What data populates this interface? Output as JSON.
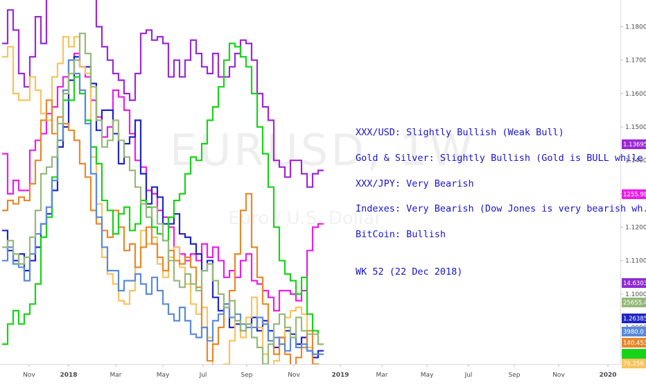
{
  "watermark": {
    "symbol": "EURUSD, 1W",
    "name": "Euro / U.S. Dollar"
  },
  "annotations": [
    "XXX/USD: Slightly Bullish (Weak Bull)",
    "Gold & Silver: Slightly Bullish (Gold is BULL while",
    "XXX/JPY: Very Bearish",
    "Indexes: Very Bearish (Dow Jones is very bearish wh.",
    "BitCoin: Bullish",
    "WK 52 (22 Dec 2018)"
  ],
  "price_badges": [
    {
      "label": "1.13695",
      "color": "#9c27d6"
    },
    {
      "label": "1255.984",
      "color": "#e91ee8"
    },
    {
      "label": "14.63037",
      "color": "#8f2bd0"
    },
    {
      "label": "25655.4",
      "color": "#95b87a"
    },
    {
      "label": "1.26385",
      "color": "#1e25c8"
    },
    {
      "label": "3980.0",
      "color": "#5a8ad8"
    },
    {
      "label": "140.453",
      "color": "#e8872a"
    },
    {
      "label": "",
      "color": "#17d317"
    },
    {
      "label": "78.256",
      "color": "#f7c35e"
    }
  ],
  "chart_data": {
    "type": "line",
    "title": "EURUSD, 1W",
    "x_ticks": [
      "Nov",
      "2018",
      "Mar",
      "May",
      "Jul",
      "Sep",
      "Nov",
      "2019",
      "Mar",
      "May",
      "Jul",
      "Sep",
      "Nov",
      "2020"
    ],
    "y_ticks": [
      "1.18000",
      "1.17000",
      "1.16000",
      "1.15000",
      "1.14000",
      "1.13000",
      "1.12000",
      "1.11000",
      "1.10000",
      "1.09000"
    ],
    "ylim": [
      1.079,
      1.188
    ],
    "weeks_plotted": 58,
    "series": [
      {
        "color": "#9c27d6",
        "values": [
          1.175,
          1.185,
          1.179,
          1.166,
          1.162,
          1.171,
          1.183,
          1.175,
          1.19,
          1.19,
          1.19,
          1.19,
          1.19,
          1.19,
          1.19,
          1.19,
          1.19,
          1.18,
          1.174,
          1.17,
          1.166,
          1.164,
          1.16,
          1.158,
          1.166,
          1.178,
          1.179,
          1.176,
          1.177,
          1.175,
          1.165,
          1.17,
          1.165,
          1.17,
          1.176,
          1.172,
          1.168,
          1.166,
          1.172,
          1.165,
          1.165,
          1.168,
          1.172,
          1.176,
          1.175,
          1.17,
          1.16,
          1.156,
          1.152,
          1.14,
          1.138,
          1.135,
          1.14,
          1.14,
          1.136,
          1.132,
          1.136,
          1.137
        ]
      },
      {
        "color": "#e91ee8",
        "values": [
          1.142,
          1.13,
          1.134,
          1.131,
          1.131,
          1.143,
          1.146,
          1.148,
          1.154,
          1.156,
          1.162,
          1.165,
          1.17,
          1.172,
          1.168,
          1.165,
          1.158,
          1.153,
          1.147,
          1.15,
          1.161,
          1.159,
          1.155,
          1.148,
          1.14,
          1.138,
          1.131,
          1.13,
          1.125,
          1.123,
          1.12,
          1.114,
          1.112,
          1.11,
          1.112,
          1.11,
          1.115,
          1.111,
          1.114,
          1.11,
          1.105,
          1.107,
          1.105,
          1.11,
          1.112,
          1.104,
          1.103,
          1.101,
          1.099,
          1.095,
          1.101,
          1.101,
          1.1,
          1.098,
          1.101,
          1.113,
          1.12,
          1.121
        ]
      },
      {
        "color": "#1e25c8",
        "values": [
          1.119,
          1.113,
          1.11,
          1.112,
          1.107,
          1.11,
          1.114,
          1.121,
          1.124,
          1.131,
          1.144,
          1.15,
          1.164,
          1.171,
          1.168,
          1.168,
          1.163,
          1.149,
          1.155,
          1.155,
          1.148,
          1.139,
          1.145,
          1.147,
          1.152,
          1.136,
          1.127,
          1.132,
          1.129,
          1.121,
          1.121,
          1.124,
          1.118,
          1.117,
          1.115,
          1.112,
          1.107,
          1.11,
          1.099,
          1.095,
          1.097,
          1.09,
          1.091,
          1.089,
          1.091,
          1.093,
          1.089,
          1.092,
          1.089,
          1.084,
          1.087,
          1.089,
          1.088,
          1.085,
          1.087,
          1.083,
          1.081,
          1.083
        ]
      },
      {
        "color": "#f7c35e",
        "values": [
          1.171,
          1.174,
          1.16,
          1.158,
          1.158,
          1.165,
          1.161,
          1.154,
          1.152,
          1.165,
          1.169,
          1.177,
          1.174,
          1.177,
          1.168,
          1.166,
          1.141,
          1.127,
          1.111,
          1.106,
          1.103,
          1.098,
          1.097,
          1.101,
          1.108,
          1.119,
          1.115,
          1.117,
          1.109,
          1.105,
          1.111,
          1.114,
          1.108,
          1.103,
          1.097,
          1.094,
          1.096,
          1.087,
          1.077,
          1.075,
          1.079,
          1.086,
          1.092,
          1.087,
          1.093,
          1.099,
          1.09,
          1.082,
          1.076,
          1.08,
          1.085,
          1.093,
          1.095,
          1.096,
          1.094,
          1.084,
          1.079,
          1.077
        ]
      },
      {
        "color": "#e8872a",
        "values": [
          1.125,
          1.128,
          1.127,
          1.129,
          1.128,
          1.133,
          1.14,
          1.152,
          1.158,
          1.148,
          1.153,
          1.151,
          1.149,
          1.146,
          1.139,
          1.135,
          1.125,
          1.121,
          1.119,
          1.117,
          1.125,
          1.12,
          1.113,
          1.115,
          1.108,
          1.114,
          1.12,
          1.115,
          1.111,
          1.107,
          1.113,
          1.11,
          1.109,
          1.111,
          1.108,
          1.102,
          1.09,
          1.08,
          1.085,
          1.09,
          1.096,
          1.101,
          1.112,
          1.125,
          1.13,
          1.114,
          1.105,
          1.097,
          1.086,
          1.082,
          1.087,
          1.082,
          1.078,
          1.081,
          1.084,
          1.089,
          1.079,
          1.078
        ]
      },
      {
        "color": "#17d317",
        "values": [
          1.085,
          1.091,
          1.095,
          1.091,
          1.094,
          1.097,
          1.103,
          1.117,
          1.123,
          1.135,
          1.146,
          1.158,
          1.158,
          1.165,
          1.16,
          1.152,
          1.144,
          1.139,
          1.128,
          1.125,
          1.118,
          1.124,
          1.126,
          1.119,
          1.121,
          1.128,
          1.126,
          1.12,
          1.118,
          1.116,
          1.123,
          1.128,
          1.13,
          1.136,
          1.141,
          1.14,
          1.145,
          1.152,
          1.156,
          1.162,
          1.17,
          1.175,
          1.174,
          1.171,
          1.168,
          1.16,
          1.15,
          1.142,
          1.132,
          1.12,
          1.11,
          1.106,
          1.104,
          1.1,
          1.105,
          1.094,
          1.089,
          1.085
        ]
      },
      {
        "color": "#5a8ad8",
        "values": [
          1.11,
          1.114,
          1.109,
          1.108,
          1.104,
          1.112,
          1.118,
          1.121,
          1.126,
          1.134,
          1.146,
          1.161,
          1.17,
          1.166,
          1.161,
          1.151,
          1.136,
          1.123,
          1.114,
          1.107,
          1.107,
          1.101,
          1.104,
          1.104,
          1.106,
          1.103,
          1.1,
          1.105,
          1.101,
          1.097,
          1.094,
          1.092,
          1.096,
          1.092,
          1.088,
          1.087,
          1.09,
          1.086,
          1.092,
          1.094,
          1.097,
          1.093,
          1.094,
          1.091,
          1.09,
          1.09,
          1.093,
          1.091,
          1.086,
          1.087,
          1.085,
          1.083,
          1.087,
          1.084,
          1.085,
          1.083,
          1.082,
          1.082
        ]
      },
      {
        "color": "#95b87a",
        "values": [
          1.114,
          1.116,
          1.112,
          1.109,
          1.111,
          1.117,
          1.125,
          1.136,
          1.138,
          1.141,
          1.151,
          1.16,
          1.166,
          1.17,
          1.178,
          1.172,
          1.162,
          1.152,
          1.144,
          1.146,
          1.152,
          1.146,
          1.141,
          1.137,
          1.132,
          1.127,
          1.123,
          1.126,
          1.121,
          1.116,
          1.11,
          1.104,
          1.102,
          1.106,
          1.103,
          1.101,
          1.107,
          1.109,
          1.104,
          1.1,
          1.096,
          1.098,
          1.092,
          1.089,
          1.091,
          1.087,
          1.084,
          1.079,
          1.085,
          1.091,
          1.094,
          1.09,
          1.087,
          1.093,
          1.089,
          1.088,
          1.088,
          1.085
        ]
      }
    ]
  }
}
